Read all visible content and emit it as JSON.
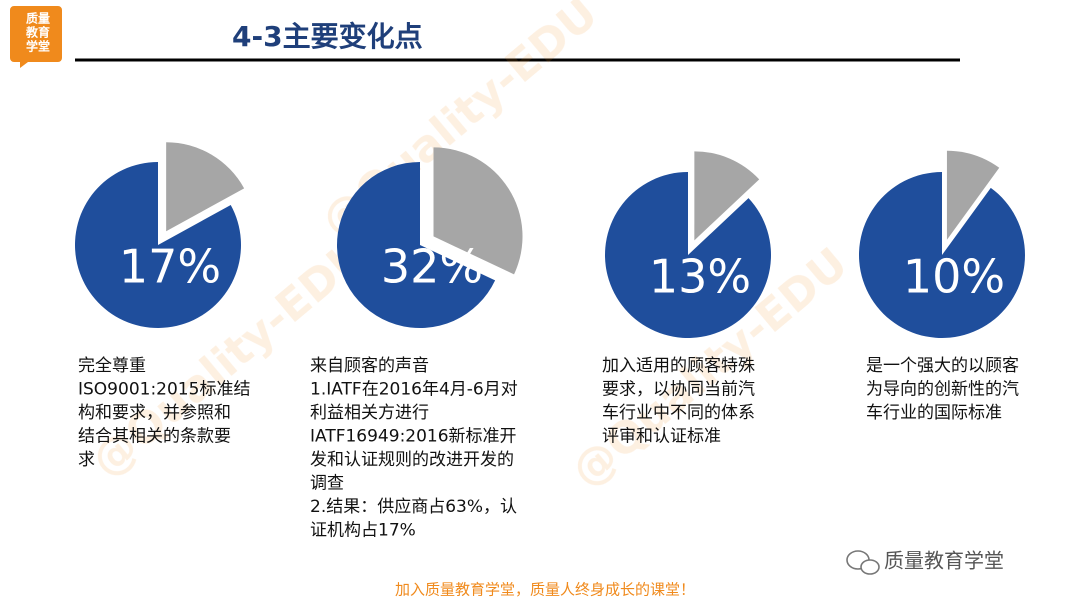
{
  "logo": [
    "质量",
    "教育",
    "学堂"
  ],
  "title": "4-3主要变化点",
  "watermark": "@Quality-EDU",
  "chart_data": [
    {
      "type": "pie",
      "values": [
        17,
        83
      ],
      "value_labels": [
        "17%",
        null
      ],
      "colors": [
        "#a6a6a6",
        "#1f4e9c"
      ]
    },
    {
      "type": "pie",
      "values": [
        32,
        68
      ],
      "value_labels": [
        "32%",
        null
      ],
      "colors": [
        "#a6a6a6",
        "#1f4e9c"
      ]
    },
    {
      "type": "pie",
      "values": [
        13,
        87
      ],
      "value_labels": [
        "13%",
        null
      ],
      "colors": [
        "#a6a6a6",
        "#1f4e9c"
      ]
    },
    {
      "type": "pie",
      "values": [
        10,
        90
      ],
      "value_labels": [
        "10%",
        null
      ],
      "colors": [
        "#a6a6a6",
        "#1f4e9c"
      ]
    }
  ],
  "descriptions": [
    [
      "完全尊重",
      "ISO9001:2015标准结",
      "构和要求，并参照和",
      "结合其相关的条款要",
      "求"
    ],
    [
      "来自顾客的声音",
      "1.IATF在2016年4月-6月对",
      "利益相关方进行",
      "IATF16949:2016新标准开",
      "发和认证规则的改进开发的",
      "调查",
      "2.结果：供应商占63%，认",
      "证机构占17%"
    ],
    [
      "加入适用的顾客特殊",
      "要求，以协同当前汽",
      "车行业中不同的体系",
      "评审和认证标准"
    ],
    [
      "是一个强大的以顾客",
      "为导向的创新性的汽",
      "车行业的国际标准"
    ]
  ],
  "wechat_label": "质量教育学堂",
  "footer": "加入质量教育学堂，质量人终身成长的课堂！"
}
